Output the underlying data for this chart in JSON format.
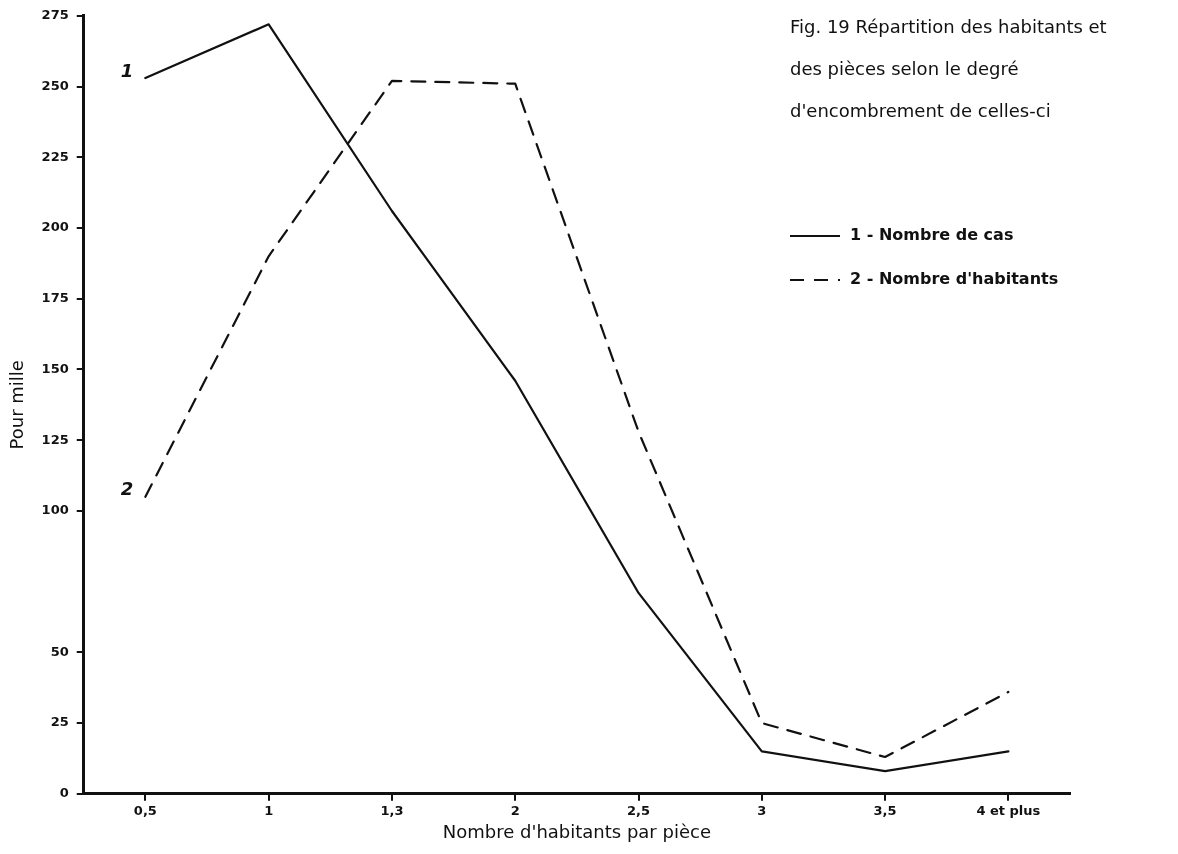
{
  "chart_data": {
    "type": "line",
    "title": "Fig. 19  Répartition des habitants et des pièces selon le degré d'encombrement de celles-ci",
    "xlabel": "Nombre d'habitants par pièce",
    "ylabel": "Pour mille",
    "categories": [
      "0,5",
      "1",
      "1,3",
      "2",
      "2,5",
      "3",
      "3,5",
      "4 et plus"
    ],
    "series": [
      {
        "name": "1 - Nombre de cas",
        "color": "#111111",
        "line_style": "solid",
        "values": [
          253,
          272,
          206,
          146,
          71,
          15,
          8,
          15
        ]
      },
      {
        "name": "2 - Nombre d'habitants",
        "color": "#111111",
        "line_style": "dashed",
        "values": [
          105,
          190,
          252,
          251,
          128,
          25,
          13,
          36
        ]
      }
    ],
    "ylim": [
      0,
      275
    ],
    "yticks": [
      0,
      25,
      50,
      100,
      125,
      150,
      175,
      200,
      225,
      250,
      275
    ],
    "annotations": [
      {
        "text": "1",
        "x": "0,5",
        "y": 253
      },
      {
        "text": "2",
        "x": "0,5",
        "y": 105
      }
    ],
    "grid": false,
    "legend": "top right",
    "marker": "none"
  }
}
